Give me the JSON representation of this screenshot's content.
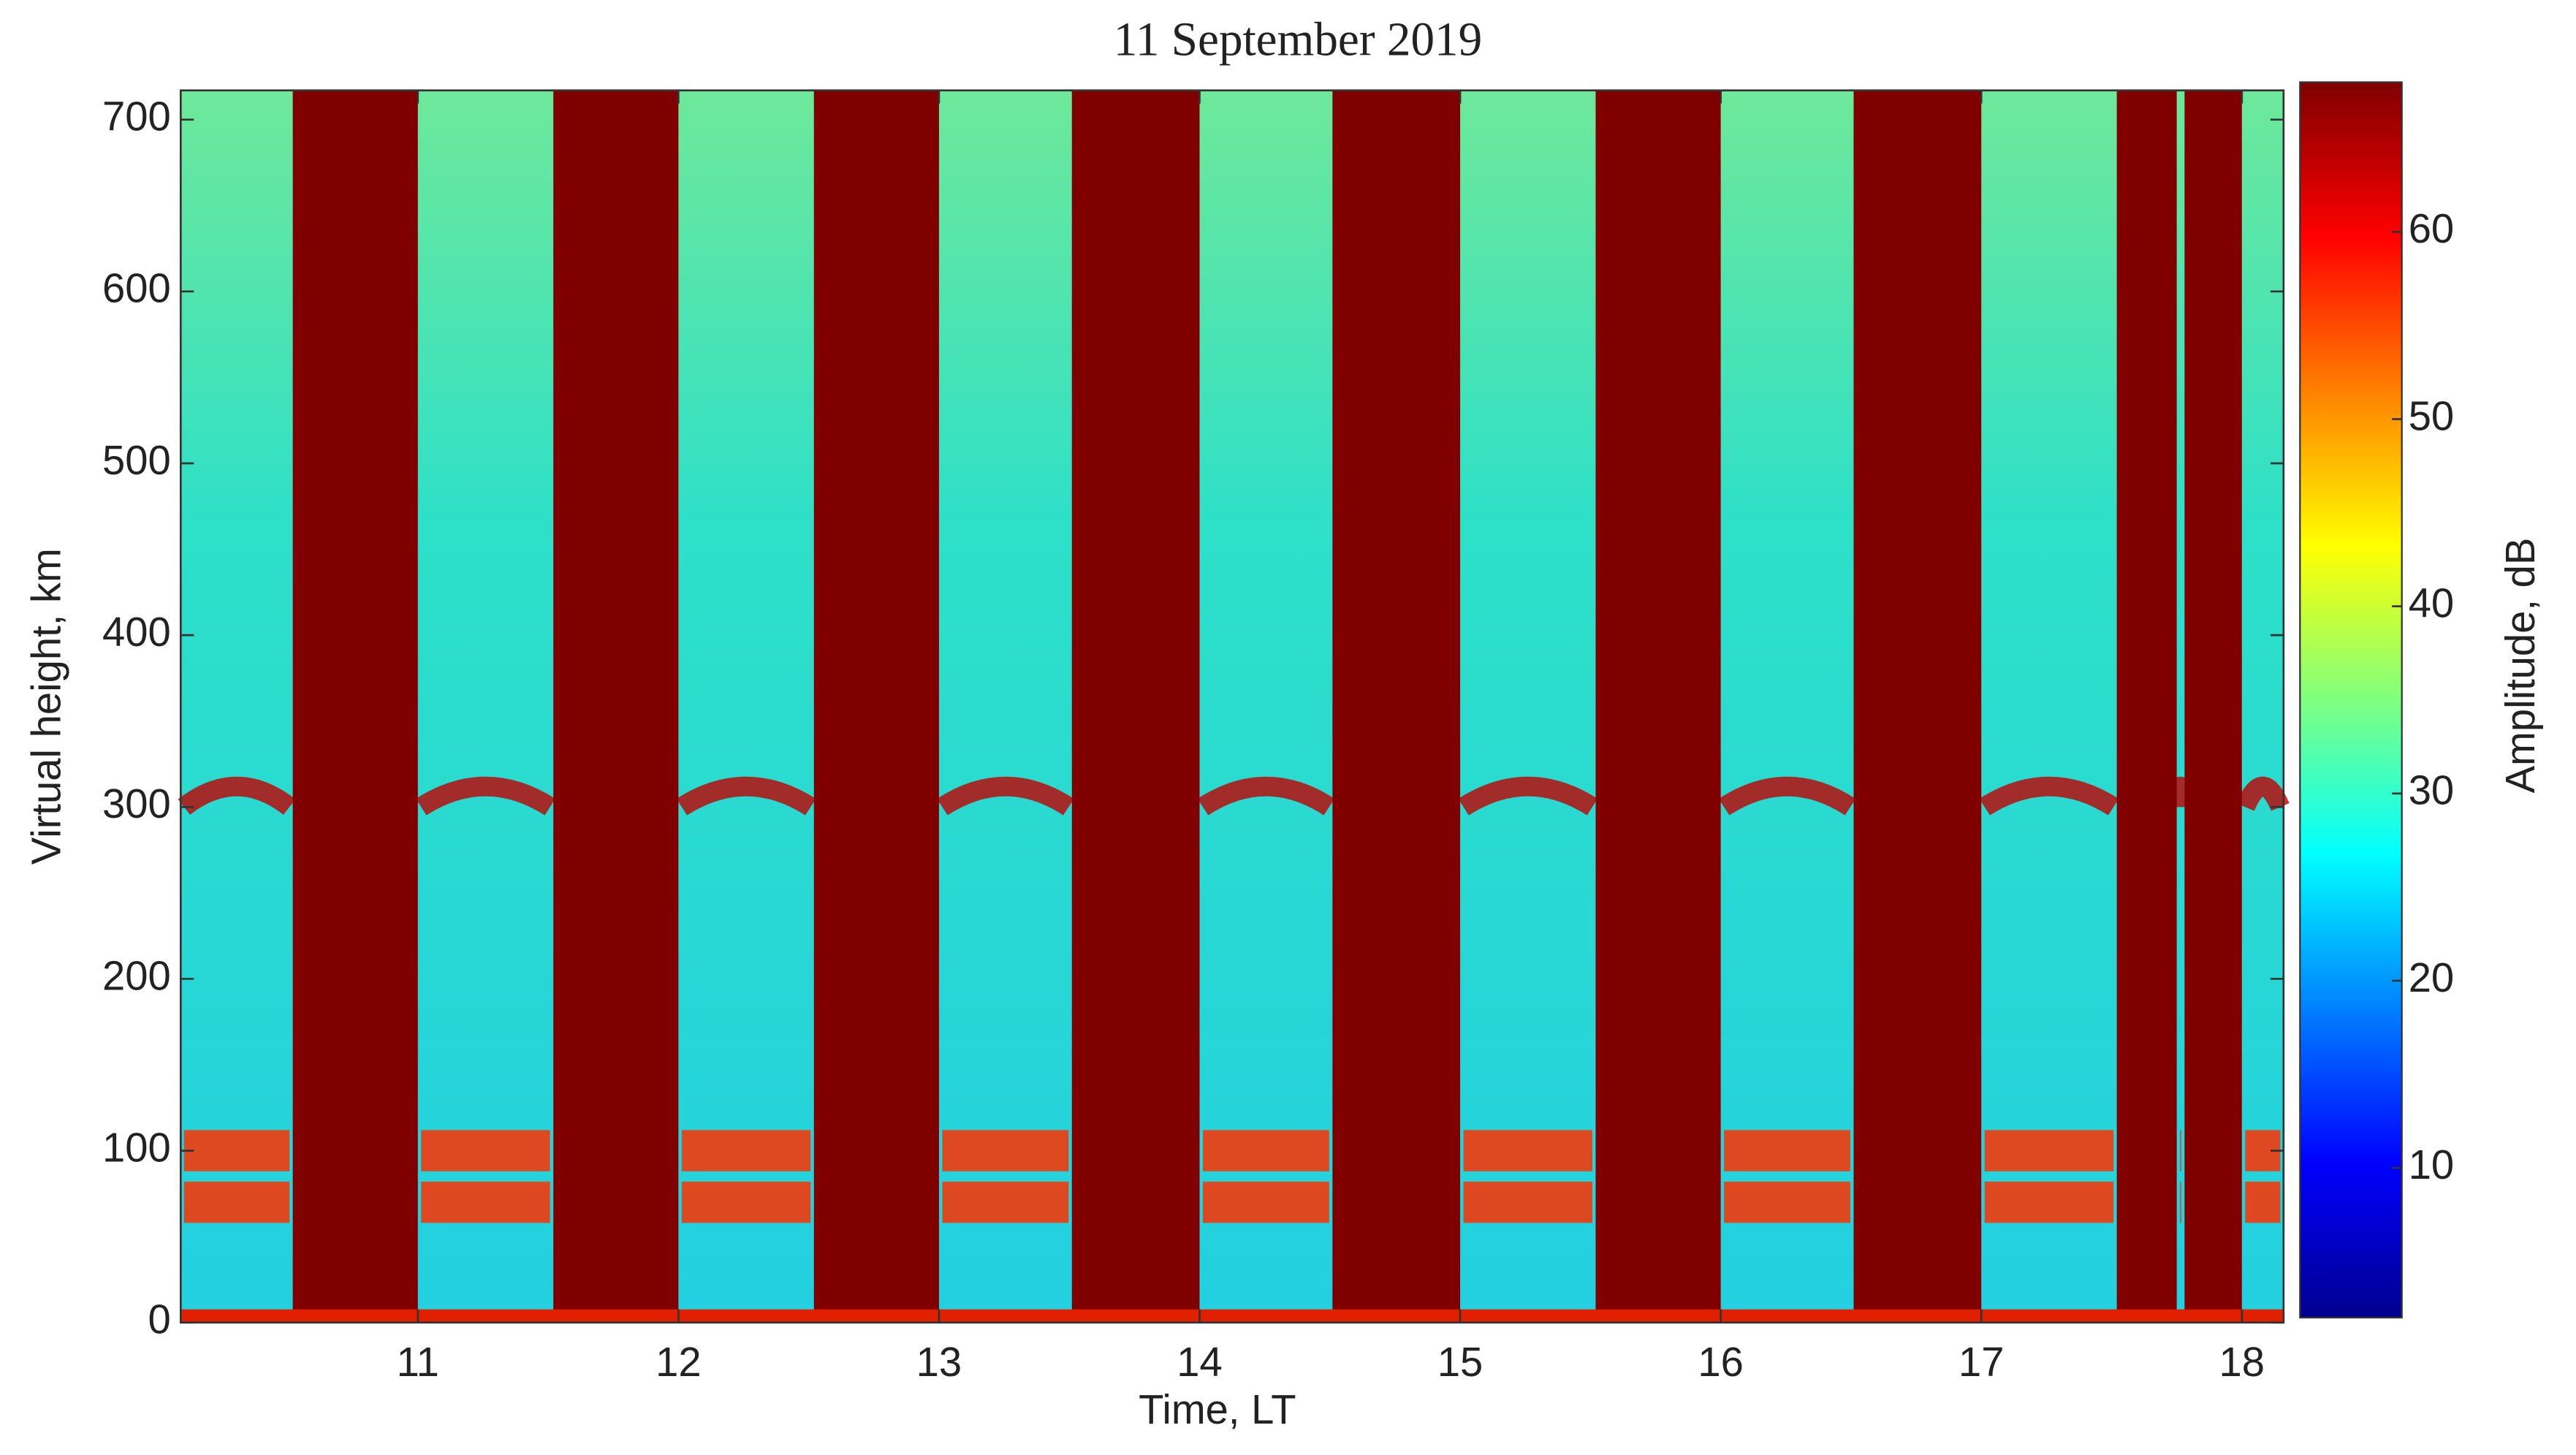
{
  "chart_data": {
    "type": "heatmap",
    "title": "11 September 2019",
    "x_label": "Time, LT",
    "y_label": "Virtual height, km",
    "colorbar_label": "Amplitude, dB",
    "xlim": [
      10.09,
      18.16
    ],
    "xticks": [
      11,
      12,
      13,
      14,
      15,
      16,
      17,
      18
    ],
    "ylim": [
      0,
      717
    ],
    "yticks": [
      0,
      100,
      200,
      300,
      400,
      500,
      600,
      700
    ],
    "clim": [
      2,
      68
    ],
    "cticks": [
      10,
      20,
      30,
      40,
      50,
      60
    ],
    "colormap": [
      "#00008f",
      "#0000ff",
      "#0080ff",
      "#00ffff",
      "#80ff80",
      "#ffff00",
      "#ff8000",
      "#ff0000",
      "#800000"
    ],
    "saturated": [
      [
        10.52,
        11.0
      ],
      [
        11.52,
        12.0
      ],
      [
        12.52,
        13.0
      ],
      [
        13.51,
        14.0
      ],
      [
        14.51,
        15.0
      ],
      [
        15.52,
        16.0
      ],
      [
        16.51,
        17.0
      ],
      [
        17.52,
        17.75
      ],
      [
        17.78,
        18.0
      ]
    ],
    "bands": [
      100,
      70
    ],
    "f_layer": 300
  }
}
